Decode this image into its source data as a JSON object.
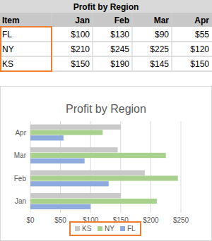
{
  "table": {
    "title": "Profit by Region",
    "header": [
      "Item",
      "Jan",
      "Feb",
      "Mar",
      "Apr"
    ],
    "rows": [
      [
        "FL",
        "$100",
        "$130",
        "$90",
        "$55"
      ],
      [
        "NY",
        "$210",
        "$245",
        "$225",
        "$120"
      ],
      [
        "KS",
        "$150",
        "$190",
        "$145",
        "$150"
      ]
    ]
  },
  "chart_data": {
    "type": "bar",
    "title": "Profit by Region",
    "orientation": "horizontal",
    "categories": [
      "Jan",
      "Feb",
      "Mar",
      "Apr"
    ],
    "series": [
      {
        "name": "KS",
        "color": "#c9c9c9",
        "values": [
          150,
          190,
          145,
          150
        ]
      },
      {
        "name": "NY",
        "color": "#a9d18e",
        "values": [
          210,
          245,
          225,
          120
        ]
      },
      {
        "name": "FL",
        "color": "#8faadc",
        "values": [
          100,
          130,
          90,
          55
        ]
      }
    ],
    "xlim": [
      0,
      250
    ],
    "xticks": [
      {
        "value": 0,
        "label": "$0"
      },
      {
        "value": 50,
        "label": "$50"
      },
      {
        "value": 100,
        "label": "$100"
      },
      {
        "value": 150,
        "label": "$150"
      },
      {
        "value": 200,
        "label": "$200"
      },
      {
        "value": 250,
        "label": "$250"
      }
    ],
    "grid": true,
    "legend": "bottom"
  }
}
